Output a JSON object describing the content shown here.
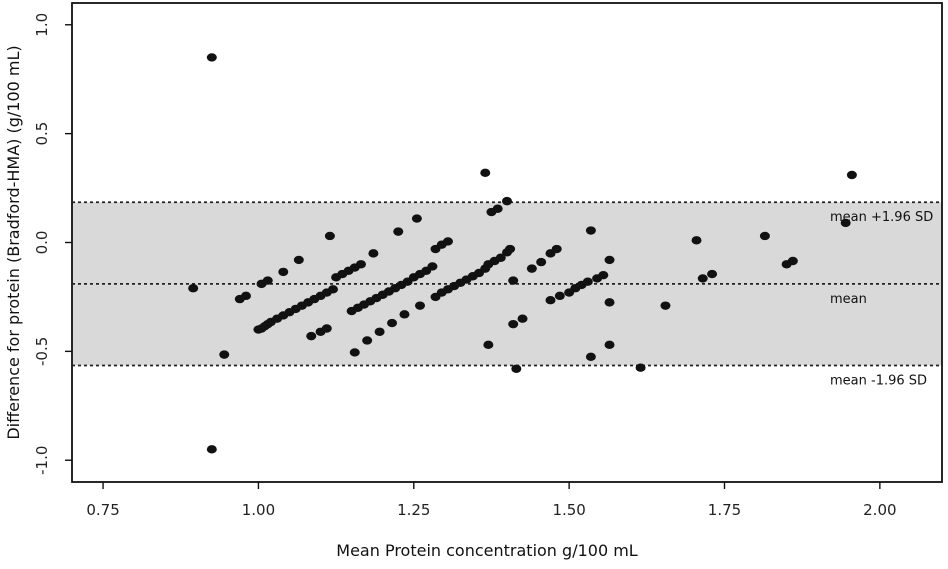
{
  "chart_data": {
    "type": "scatter",
    "title": "",
    "xlabel": "Mean Protein concentration g/100 mL",
    "ylabel": "Difference for protein (Bradford-HMA) (g/100 mL)",
    "xlim": [
      0.7,
      2.1
    ],
    "ylim": [
      -1.1,
      1.1
    ],
    "x_ticks": [
      0.75,
      1.0,
      1.25,
      1.5,
      1.75,
      2.0
    ],
    "x_tick_labels": [
      "0.75",
      "1.00",
      "1.25",
      "1.50",
      "1.75",
      "2.00"
    ],
    "y_ticks": [
      -1.0,
      -0.5,
      0.0,
      0.5,
      1.0
    ],
    "y_tick_labels": [
      "-1.0",
      "-0.5",
      "0.0",
      "0.5",
      "1.0"
    ],
    "grid": false,
    "legend": "none",
    "reference_lines": [
      {
        "label": "mean +1.96 SD",
        "y": 0.185
      },
      {
        "label": "mean",
        "y": -0.19
      },
      {
        "label": "mean -1.96 SD",
        "y": -0.565
      }
    ],
    "limits_band_color": "#d9d9d9",
    "point_color": "#111111",
    "points": [
      {
        "x": 0.925,
        "y": 0.85
      },
      {
        "x": 0.925,
        "y": -0.95
      },
      {
        "x": 0.895,
        "y": -0.21
      },
      {
        "x": 0.945,
        "y": -0.515
      },
      {
        "x": 0.97,
        "y": -0.26
      },
      {
        "x": 0.98,
        "y": -0.245
      },
      {
        "x": 1.0,
        "y": -0.4
      },
      {
        "x": 1.005,
        "y": -0.395
      },
      {
        "x": 1.01,
        "y": -0.385
      },
      {
        "x": 1.015,
        "y": -0.375
      },
      {
        "x": 1.02,
        "y": -0.365
      },
      {
        "x": 1.03,
        "y": -0.35
      },
      {
        "x": 1.04,
        "y": -0.335
      },
      {
        "x": 1.05,
        "y": -0.32
      },
      {
        "x": 1.06,
        "y": -0.305
      },
      {
        "x": 1.07,
        "y": -0.29
      },
      {
        "x": 1.08,
        "y": -0.275
      },
      {
        "x": 1.09,
        "y": -0.26
      },
      {
        "x": 1.1,
        "y": -0.245
      },
      {
        "x": 1.11,
        "y": -0.23
      },
      {
        "x": 1.12,
        "y": -0.215
      },
      {
        "x": 1.005,
        "y": -0.19
      },
      {
        "x": 1.015,
        "y": -0.175
      },
      {
        "x": 1.04,
        "y": -0.135
      },
      {
        "x": 1.065,
        "y": -0.08
      },
      {
        "x": 1.115,
        "y": 0.03
      },
      {
        "x": 1.085,
        "y": -0.43
      },
      {
        "x": 1.1,
        "y": -0.41
      },
      {
        "x": 1.11,
        "y": -0.395
      },
      {
        "x": 1.125,
        "y": -0.16
      },
      {
        "x": 1.135,
        "y": -0.145
      },
      {
        "x": 1.145,
        "y": -0.13
      },
      {
        "x": 1.155,
        "y": -0.115
      },
      {
        "x": 1.165,
        "y": -0.1
      },
      {
        "x": 1.15,
        "y": -0.315
      },
      {
        "x": 1.16,
        "y": -0.3
      },
      {
        "x": 1.17,
        "y": -0.285
      },
      {
        "x": 1.18,
        "y": -0.27
      },
      {
        "x": 1.19,
        "y": -0.255
      },
      {
        "x": 1.2,
        "y": -0.24
      },
      {
        "x": 1.21,
        "y": -0.225
      },
      {
        "x": 1.22,
        "y": -0.21
      },
      {
        "x": 1.23,
        "y": -0.195
      },
      {
        "x": 1.24,
        "y": -0.18
      },
      {
        "x": 1.25,
        "y": -0.16
      },
      {
        "x": 1.26,
        "y": -0.145
      },
      {
        "x": 1.27,
        "y": -0.13
      },
      {
        "x": 1.28,
        "y": -0.11
      },
      {
        "x": 1.185,
        "y": -0.05
      },
      {
        "x": 1.155,
        "y": -0.505
      },
      {
        "x": 1.175,
        "y": -0.45
      },
      {
        "x": 1.195,
        "y": -0.41
      },
      {
        "x": 1.215,
        "y": -0.37
      },
      {
        "x": 1.235,
        "y": -0.33
      },
      {
        "x": 1.225,
        "y": 0.05
      },
      {
        "x": 1.255,
        "y": 0.11
      },
      {
        "x": 1.26,
        "y": -0.29
      },
      {
        "x": 1.285,
        "y": -0.25
      },
      {
        "x": 1.295,
        "y": -0.23
      },
      {
        "x": 1.305,
        "y": -0.215
      },
      {
        "x": 1.315,
        "y": -0.2
      },
      {
        "x": 1.325,
        "y": -0.185
      },
      {
        "x": 1.335,
        "y": -0.17
      },
      {
        "x": 1.345,
        "y": -0.155
      },
      {
        "x": 1.355,
        "y": -0.14
      },
      {
        "x": 1.365,
        "y": -0.12
      },
      {
        "x": 1.37,
        "y": -0.1
      },
      {
        "x": 1.38,
        "y": -0.085
      },
      {
        "x": 1.39,
        "y": -0.07
      },
      {
        "x": 1.4,
        "y": -0.045
      },
      {
        "x": 1.405,
        "y": -0.03
      },
      {
        "x": 1.285,
        "y": -0.03
      },
      {
        "x": 1.295,
        "y": -0.01
      },
      {
        "x": 1.305,
        "y": 0.005
      },
      {
        "x": 1.365,
        "y": 0.32
      },
      {
        "x": 1.375,
        "y": 0.14
      },
      {
        "x": 1.385,
        "y": 0.155
      },
      {
        "x": 1.4,
        "y": 0.19
      },
      {
        "x": 1.37,
        "y": -0.47
      },
      {
        "x": 1.41,
        "y": -0.175
      },
      {
        "x": 1.41,
        "y": -0.375
      },
      {
        "x": 1.425,
        "y": -0.35
      },
      {
        "x": 1.415,
        "y": -0.58
      },
      {
        "x": 1.44,
        "y": -0.12
      },
      {
        "x": 1.455,
        "y": -0.09
      },
      {
        "x": 1.47,
        "y": -0.05
      },
      {
        "x": 1.48,
        "y": -0.03
      },
      {
        "x": 1.47,
        "y": -0.265
      },
      {
        "x": 1.485,
        "y": -0.245
      },
      {
        "x": 1.5,
        "y": -0.23
      },
      {
        "x": 1.51,
        "y": -0.21
      },
      {
        "x": 1.52,
        "y": -0.195
      },
      {
        "x": 1.53,
        "y": -0.18
      },
      {
        "x": 1.545,
        "y": -0.165
      },
      {
        "x": 1.555,
        "y": -0.15
      },
      {
        "x": 1.535,
        "y": 0.055
      },
      {
        "x": 1.535,
        "y": -0.525
      },
      {
        "x": 1.565,
        "y": -0.08
      },
      {
        "x": 1.565,
        "y": -0.275
      },
      {
        "x": 1.565,
        "y": -0.47
      },
      {
        "x": 1.615,
        "y": -0.575
      },
      {
        "x": 1.655,
        "y": -0.29
      },
      {
        "x": 1.705,
        "y": 0.01
      },
      {
        "x": 1.715,
        "y": -0.165
      },
      {
        "x": 1.73,
        "y": -0.145
      },
      {
        "x": 1.815,
        "y": 0.03
      },
      {
        "x": 1.85,
        "y": -0.1
      },
      {
        "x": 1.86,
        "y": -0.085
      },
      {
        "x": 1.945,
        "y": 0.09
      },
      {
        "x": 1.955,
        "y": 0.31
      }
    ]
  }
}
